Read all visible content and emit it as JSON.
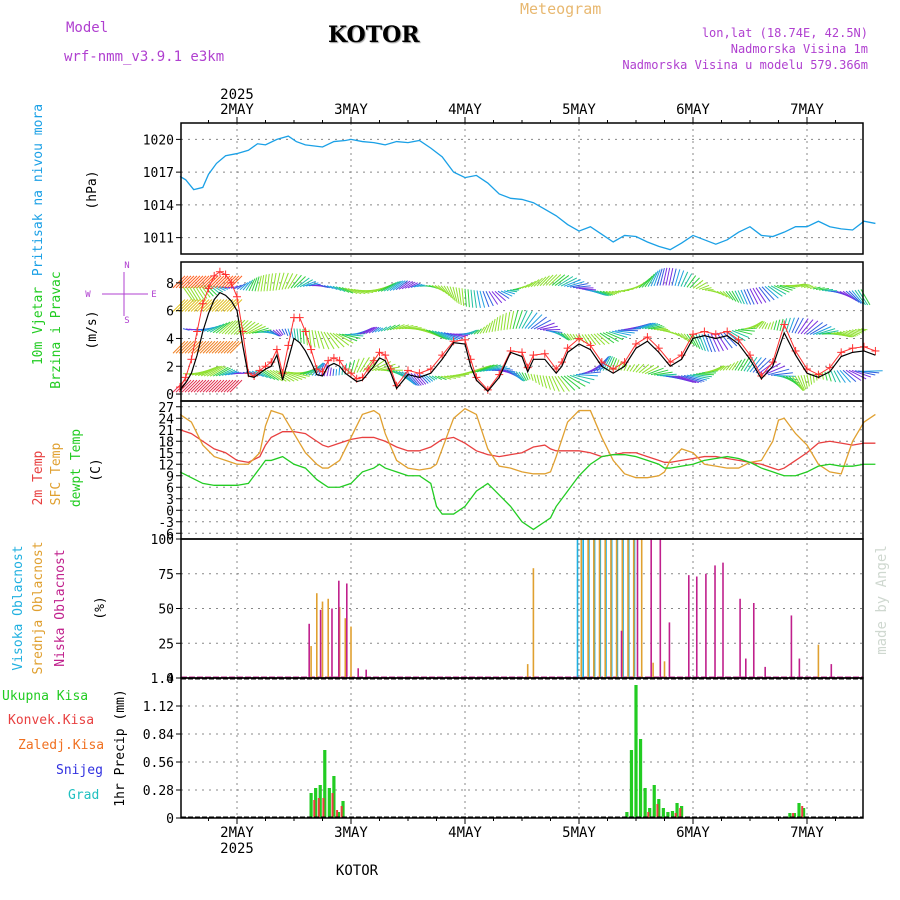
{
  "header": {
    "model_label": "Model",
    "model_name": "wrf-nmm_v3.9.1  e3km",
    "station": "KOTOR",
    "product": "Meteogram",
    "coords": "lon,lat (18.74E, 42.5N)",
    "elevation": "Nadmorska Visina 1m",
    "model_elevation": "Nadmorska Visina u modelu 579.366m",
    "footer_station": "KOTOR",
    "credit": "made by Angel",
    "year_top": "2025",
    "year_bottom": "2025"
  },
  "colors": {
    "pressure": "#1aa0e6",
    "temp2m": "#e84040",
    "sfc_temp": "#e0a030",
    "dewpt": "#22cc22",
    "high_cloud": "#20b0e0",
    "mid_cloud": "#e0a030",
    "low_cloud": "#c0208c",
    "total_precip": "#22cc22",
    "conv_precip": "#e84040",
    "frozen_precip": "#f07020",
    "snow": "#3030e0",
    "hail": "#20c0c0",
    "model_label": "#b040d0",
    "product": "#e8b870"
  },
  "days": [
    "2MAY",
    "3MAY",
    "4MAY",
    "5MAY",
    "6MAY",
    "7MAY"
  ],
  "chart_data": [
    {
      "type": "line",
      "title": "Pritisak na nivou mora",
      "ylabel": "(hPa)",
      "ylim": [
        1009.5,
        1021.5
      ],
      "yticks": [
        1011,
        1014,
        1017,
        1020
      ],
      "x_unit": "days since 2 MAY 00Z",
      "x": [
        -0.5,
        -0.45,
        -0.38,
        -0.3,
        -0.25,
        -0.18,
        -0.1,
        0.0,
        0.1,
        0.18,
        0.25,
        0.35,
        0.45,
        0.52,
        0.6,
        0.75,
        0.85,
        0.95,
        1.0,
        1.1,
        1.2,
        1.3,
        1.4,
        1.5,
        1.6,
        1.7,
        1.8,
        1.9,
        2.0,
        2.1,
        2.2,
        2.3,
        2.4,
        2.5,
        2.6,
        2.7,
        2.8,
        2.9,
        3.0,
        3.1,
        3.2,
        3.3,
        3.4,
        3.5,
        3.6,
        3.7,
        3.8,
        3.9,
        4.0,
        4.1,
        4.2,
        4.3,
        4.4,
        4.5,
        4.6,
        4.7,
        4.8,
        4.9,
        5.0,
        5.1,
        5.2,
        5.3,
        5.4,
        5.5,
        5.6
      ],
      "series": [
        {
          "name": "Pritisak na nivou mora",
          "color": "#1aa0e6",
          "values": [
            1016.6,
            1016.3,
            1015.4,
            1015.6,
            1016.8,
            1017.8,
            1018.5,
            1018.7,
            1019.0,
            1019.6,
            1019.5,
            1020.0,
            1020.3,
            1019.8,
            1019.5,
            1019.3,
            1019.8,
            1019.9,
            1020.0,
            1019.8,
            1019.7,
            1019.5,
            1019.8,
            1019.7,
            1019.9,
            1019.2,
            1018.4,
            1017.0,
            1016.5,
            1016.7,
            1016.0,
            1015.0,
            1014.6,
            1014.5,
            1014.2,
            1013.6,
            1013.0,
            1012.2,
            1011.6,
            1012.0,
            1011.3,
            1010.6,
            1011.2,
            1011.1,
            1010.6,
            1010.2,
            1009.9,
            1010.5,
            1011.2,
            1010.8,
            1010.4,
            1010.8,
            1011.5,
            1012.0,
            1011.2,
            1011.1,
            1011.5,
            1012.0,
            1012.0,
            1012.5,
            1012.0,
            1011.8,
            1011.7,
            1012.5,
            1012.3
          ]
        }
      ]
    },
    {
      "type": "line",
      "title": "10m Vjetar Brzina i Pravac",
      "ylabel": "(m/s)",
      "ylim": [
        -0.5,
        9.5
      ],
      "yticks": [
        0,
        2,
        4,
        6,
        8
      ],
      "x": [
        -0.5,
        -0.45,
        -0.4,
        -0.35,
        -0.3,
        -0.25,
        -0.2,
        -0.15,
        -0.1,
        -0.05,
        0.0,
        0.05,
        0.1,
        0.15,
        0.2,
        0.25,
        0.3,
        0.35,
        0.4,
        0.45,
        0.5,
        0.55,
        0.6,
        0.65,
        0.7,
        0.75,
        0.8,
        0.85,
        0.9,
        0.95,
        1.0,
        1.05,
        1.1,
        1.15,
        1.2,
        1.25,
        1.3,
        1.35,
        1.4,
        1.5,
        1.6,
        1.7,
        1.8,
        1.9,
        2.0,
        2.05,
        2.1,
        2.2,
        2.3,
        2.4,
        2.5,
        2.55,
        2.6,
        2.7,
        2.8,
        2.85,
        2.9,
        3.0,
        3.1,
        3.2,
        3.3,
        3.4,
        3.5,
        3.6,
        3.7,
        3.8,
        3.9,
        4.0,
        4.1,
        4.2,
        4.3,
        4.4,
        4.5,
        4.6,
        4.7,
        4.8,
        4.9,
        5.0,
        5.1,
        5.2,
        5.3,
        5.4,
        5.5,
        5.6
      ],
      "series": [
        {
          "name": "10m brzina vjetra",
          "color": "#000000",
          "values": [
            0.3,
            0.8,
            1.5,
            2.8,
            4.5,
            5.8,
            6.8,
            7.3,
            7.1,
            6.7,
            6.0,
            3.5,
            1.3,
            1.2,
            1.5,
            1.8,
            2.0,
            2.8,
            1.0,
            2.5,
            4.0,
            3.7,
            3.1,
            2.3,
            1.4,
            1.3,
            2.0,
            2.2,
            2.0,
            1.5,
            1.2,
            0.9,
            1.0,
            1.5,
            2.0,
            2.6,
            2.4,
            1.5,
            0.4,
            1.4,
            1.2,
            1.5,
            2.5,
            3.7,
            3.6,
            2.0,
            1.0,
            0.2,
            1.2,
            3.0,
            2.7,
            1.6,
            2.5,
            2.5,
            1.5,
            2.0,
            3.0,
            3.6,
            3.2,
            2.0,
            1.5,
            2.0,
            3.3,
            3.8,
            3.0,
            2.0,
            2.5,
            4.0,
            4.2,
            4.0,
            4.2,
            3.6,
            2.5,
            1.1,
            2.0,
            4.4,
            2.8,
            1.5,
            1.2,
            1.6,
            2.7,
            3.0,
            3.1,
            2.8
          ]
        },
        {
          "name": "10m udar vjetra",
          "color": "#ff3030",
          "values": [
            0.5,
            1.2,
            2.5,
            4.5,
            6.5,
            7.6,
            8.5,
            8.8,
            8.6,
            8.0,
            7.0,
            4.5,
            1.5,
            1.3,
            1.7,
            2.0,
            2.3,
            3.2,
            1.5,
            3.5,
            5.5,
            5.5,
            4.5,
            3.2,
            1.8,
            1.6,
            2.4,
            2.6,
            2.4,
            1.8,
            1.5,
            1.1,
            1.2,
            1.8,
            2.4,
            3.0,
            2.8,
            1.8,
            0.6,
            1.7,
            1.5,
            1.8,
            2.8,
            3.8,
            3.9,
            2.5,
            1.2,
            0.3,
            1.4,
            3.1,
            3.0,
            1.9,
            2.8,
            2.9,
            1.8,
            2.3,
            3.3,
            4.0,
            3.5,
            2.3,
            1.8,
            2.3,
            3.6,
            4.1,
            3.3,
            2.3,
            2.8,
            4.3,
            4.5,
            4.3,
            4.5,
            3.9,
            2.8,
            1.3,
            2.3,
            5.0,
            3.1,
            1.8,
            1.4,
            1.9,
            3.0,
            3.3,
            3.4,
            3.1
          ]
        }
      ]
    },
    {
      "type": "line",
      "title": "Temperatura",
      "ylabel": "(C)",
      "ylim": [
        -7.5,
        28.5
      ],
      "yticks": [
        -6,
        -3,
        0,
        3,
        6,
        9,
        12,
        15,
        18,
        21,
        24,
        27
      ],
      "x": [
        -0.5,
        -0.4,
        -0.3,
        -0.2,
        -0.1,
        0.0,
        0.1,
        0.2,
        0.25,
        0.3,
        0.4,
        0.5,
        0.6,
        0.7,
        0.75,
        0.8,
        0.9,
        1.0,
        1.1,
        1.2,
        1.25,
        1.3,
        1.4,
        1.5,
        1.6,
        1.7,
        1.75,
        1.8,
        1.9,
        2.0,
        2.1,
        2.2,
        2.3,
        2.4,
        2.5,
        2.6,
        2.7,
        2.75,
        2.8,
        2.9,
        3.0,
        3.1,
        3.2,
        3.3,
        3.4,
        3.5,
        3.6,
        3.7,
        3.75,
        3.8,
        3.9,
        4.0,
        4.1,
        4.2,
        4.3,
        4.4,
        4.5,
        4.6,
        4.7,
        4.75,
        4.8,
        4.9,
        5.0,
        5.1,
        5.2,
        5.3,
        5.4,
        5.5,
        5.6
      ],
      "series": [
        {
          "name": "2m Temp",
          "color": "#e84040",
          "values": [
            21,
            20,
            18,
            16,
            15,
            13,
            12.5,
            14,
            17,
            19,
            20.5,
            20.5,
            20,
            18,
            17,
            16.5,
            17.5,
            18.5,
            19,
            19,
            18.5,
            18,
            16.5,
            15.5,
            15.5,
            16.5,
            17.5,
            18.5,
            19,
            17.5,
            15.5,
            14.5,
            14,
            14.5,
            15,
            16.5,
            17,
            16,
            15.5,
            15.5,
            15.5,
            15,
            14,
            14.5,
            15,
            15,
            14,
            13,
            12.5,
            12.5,
            13,
            13.5,
            14,
            14,
            13.5,
            13,
            12.5,
            12,
            11,
            10.5,
            11,
            13,
            15,
            17.5,
            18,
            17.5,
            17,
            17.5,
            17.5
          ]
        },
        {
          "name": "SFC Temp",
          "color": "#e0a030",
          "values": [
            25,
            23,
            17,
            14,
            13,
            12,
            12,
            15,
            22,
            26,
            25,
            20,
            15,
            12,
            11,
            11,
            13,
            19,
            25,
            26,
            25,
            20,
            13,
            11,
            10.5,
            11,
            12,
            16,
            24,
            26.5,
            25,
            16,
            11.5,
            11,
            10,
            9.5,
            9.5,
            10,
            14,
            23,
            26,
            26,
            19,
            13,
            9.5,
            8.5,
            8.5,
            9,
            10,
            13,
            16,
            15,
            12,
            11.5,
            11,
            11,
            12.5,
            13,
            18,
            23.5,
            24,
            20,
            17,
            12,
            10,
            9.5,
            18,
            23,
            25
          ]
        },
        {
          "name": "dewpt Temp",
          "color": "#22cc22",
          "values": [
            10,
            8.5,
            7,
            6.5,
            6.5,
            6.5,
            7,
            11,
            13,
            13,
            14,
            12,
            11,
            8,
            7,
            6,
            6,
            7,
            10,
            11,
            12,
            11,
            10,
            9,
            9,
            7,
            1,
            -1,
            -1,
            1,
            5,
            7,
            4,
            1,
            -3,
            -5,
            -3,
            -2,
            1,
            5,
            9,
            12,
            14,
            14.5,
            14.5,
            14,
            13,
            12,
            11,
            11,
            11.5,
            12,
            13,
            13.5,
            14,
            13.5,
            12.5,
            11,
            10,
            9.5,
            9,
            9,
            10,
            11.5,
            12,
            11.5,
            11.5,
            12,
            12
          ]
        }
      ]
    },
    {
      "type": "bar",
      "title": "Oblacnost",
      "ylabel": "(%)",
      "ylim": [
        0,
        100
      ],
      "yticks": [
        0,
        25,
        50,
        75,
        100
      ],
      "series": [
        {
          "name": "Visoka Oblacnost",
          "color": "#20b0e0",
          "x": [
            3.0,
            3.05,
            3.1,
            3.15,
            3.2,
            3.25,
            3.3,
            3.35,
            3.4,
            3.45,
            3.5
          ],
          "values": [
            100,
            100,
            100,
            100,
            100,
            100,
            100,
            100,
            100,
            100,
            100
          ]
        },
        {
          "name": "Srednja Oblacnost",
          "color": "#e0a030",
          "x": [
            0.65,
            0.7,
            0.75,
            0.8,
            0.9,
            0.95,
            1.0,
            2.55,
            2.6,
            3.02,
            3.08,
            3.13,
            3.18,
            3.23,
            3.28,
            3.33,
            3.38,
            3.43,
            3.48,
            3.55,
            3.65,
            3.75,
            5.1
          ],
          "values": [
            23,
            61,
            55,
            57,
            51,
            43,
            37,
            10,
            79,
            100,
            100,
            100,
            100,
            100,
            100,
            100,
            100,
            100,
            100,
            100,
            11,
            12,
            24
          ]
        },
        {
          "name": "Niska Oblacnost",
          "color": "#c0208c",
          "x": [
            0.62,
            0.72,
            0.82,
            0.88,
            0.95,
            1.05,
            1.12,
            3.36,
            3.5,
            3.62,
            3.7,
            3.78,
            3.95,
            4.02,
            4.1,
            4.18,
            4.25,
            4.4,
            4.45,
            4.52,
            4.62,
            4.85,
            4.92,
            5.2
          ],
          "values": [
            39,
            49,
            50,
            70,
            68,
            7,
            6,
            34,
            100,
            100,
            100,
            40,
            74,
            73,
            75,
            81,
            83,
            57,
            14,
            54,
            8,
            45,
            14,
            10
          ]
        }
      ]
    },
    {
      "type": "bar",
      "title": "1hr Precip",
      "ylabel": "1hr Precip (mm)",
      "ylim": [
        0,
        1.4
      ],
      "yticks": [
        0,
        0.28,
        0.56,
        0.84,
        1.12,
        1.4
      ],
      "series": [
        {
          "name": "Ukupna Kisa",
          "color": "#22cc22",
          "x": [
            0.65,
            0.69,
            0.73,
            0.77,
            0.81,
            0.85,
            0.89,
            0.93,
            3.42,
            3.46,
            3.5,
            3.54,
            3.58,
            3.62,
            3.66,
            3.7,
            3.74,
            3.78,
            3.82,
            3.86,
            3.9,
            4.85,
            4.89,
            4.93,
            4.97
          ],
          "values": [
            0.25,
            0.3,
            0.33,
            0.68,
            0.3,
            0.42,
            0.06,
            0.17,
            0.06,
            0.68,
            1.33,
            0.79,
            0.3,
            0.1,
            0.33,
            0.19,
            0.1,
            0.06,
            0.07,
            0.15,
            0.12,
            0.05,
            0.05,
            0.15,
            0.1
          ]
        },
        {
          "name": "Konvek.Kisa",
          "color": "#e84040",
          "x": [
            0.67,
            0.71,
            0.75,
            0.83,
            0.87,
            0.91,
            3.6,
            3.68,
            3.84,
            3.88,
            4.87,
            4.95
          ],
          "values": [
            0.18,
            0.2,
            0.2,
            0.25,
            0.08,
            0.12,
            0.06,
            0.14,
            0.05,
            0.1,
            0.05,
            0.12
          ]
        },
        {
          "name": "Zaledj.Kisa",
          "color": "#f07020",
          "x": [],
          "values": []
        },
        {
          "name": "Snijeg",
          "color": "#3030e0",
          "x": [],
          "values": []
        },
        {
          "name": "Grad",
          "color": "#20c0c0",
          "x": [],
          "values": []
        }
      ]
    }
  ],
  "panel_labels": {
    "pressure": "Pritisak na nivou mora",
    "pressure_unit": "(hPa)",
    "wind_title1": "10m Vjetar",
    "wind_title2": "Brzina i Pravac",
    "wind_unit": "(m/s)",
    "compass_n": "N",
    "compass_e": "E",
    "compass_w": "W",
    "compass_s": "S",
    "temp_2m": "2m Temp",
    "temp_sfc": "SFC Temp",
    "temp_dew": "dewpt Temp",
    "temp_unit": "(C)",
    "cloud_high": "Visoka Oblacnost",
    "cloud_mid": "Srednja Oblacnost",
    "cloud_low": "Niska Oblacnost",
    "cloud_unit": "(%)",
    "precip_total": "Ukupna Kisa",
    "precip_conv": "Konvek.Kisa",
    "precip_frozen": "Zaledj.Kisa",
    "precip_snow": "Snijeg",
    "precip_hail": "Grad",
    "precip_unit": "1hr Precip (mm)"
  }
}
